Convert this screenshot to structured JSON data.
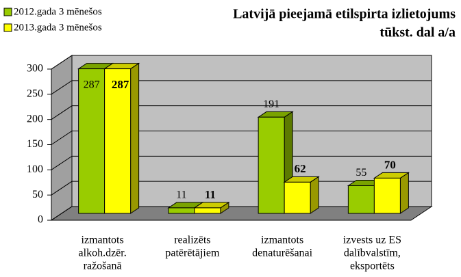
{
  "chart_data": {
    "type": "bar3d",
    "title": [
      "Latvijā pieejamā etilspirta izlietojums",
      "tūkst. dal a/a"
    ],
    "categories": [
      [
        "izmantots",
        "alkoh.dzēr.",
        "ražošanā"
      ],
      [
        "realizēts",
        "patērētājiem"
      ],
      [
        "izmantots",
        "denaturēšanai"
      ],
      [
        "izvests uz ES",
        "dalībvalstīm,",
        "eksportēts"
      ]
    ],
    "series": [
      {
        "name": "2012.gada 3 mēnešos",
        "color": "#99cc00",
        "values": [
          287,
          11,
          191,
          55
        ]
      },
      {
        "name": "2013.gada 3 mēnešos",
        "color": "#ffff00",
        "values": [
          287,
          11,
          62,
          70
        ]
      }
    ],
    "ylim": [
      0,
      300
    ],
    "yticks": [
      0,
      50,
      100,
      150,
      200,
      250,
      300
    ],
    "grid": true,
    "legend": "top-left"
  }
}
